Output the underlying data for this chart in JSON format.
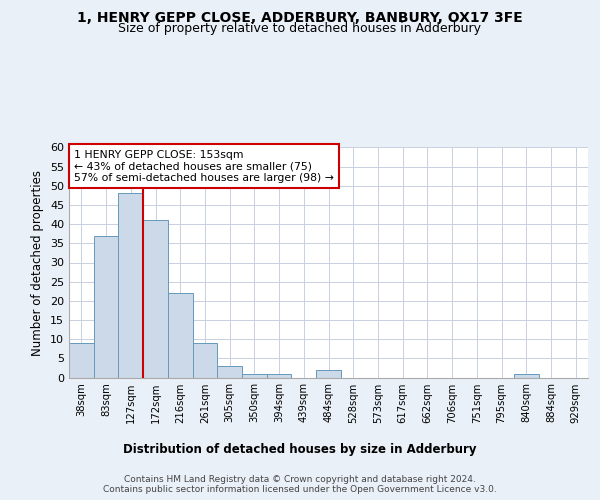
{
  "title": "1, HENRY GEPP CLOSE, ADDERBURY, BANBURY, OX17 3FE",
  "subtitle": "Size of property relative to detached houses in Adderbury",
  "xlabel": "Distribution of detached houses by size in Adderbury",
  "ylabel": "Number of detached properties",
  "bin_labels": [
    "38sqm",
    "83sqm",
    "127sqm",
    "172sqm",
    "216sqm",
    "261sqm",
    "305sqm",
    "350sqm",
    "394sqm",
    "439sqm",
    "484sqm",
    "528sqm",
    "573sqm",
    "617sqm",
    "662sqm",
    "706sqm",
    "751sqm",
    "795sqm",
    "840sqm",
    "884sqm",
    "929sqm"
  ],
  "bar_values": [
    9,
    37,
    48,
    41,
    22,
    9,
    3,
    1,
    1,
    0,
    2,
    0,
    0,
    0,
    0,
    0,
    0,
    0,
    1,
    0,
    0
  ],
  "ylim": [
    0,
    60
  ],
  "yticks": [
    0,
    5,
    10,
    15,
    20,
    25,
    30,
    35,
    40,
    45,
    50,
    55,
    60
  ],
  "bar_color": "#ccd9e8",
  "bar_edge_color": "#6699bb",
  "vline_x_index": 2,
  "vline_color": "#cc0000",
  "annotation_text": "1 HENRY GEPP CLOSE: 153sqm\n← 43% of detached houses are smaller (75)\n57% of semi-detached houses are larger (98) →",
  "annotation_box_color": "#ffffff",
  "annotation_box_edge_color": "#cc0000",
  "footer_text": "Contains HM Land Registry data © Crown copyright and database right 2024.\nContains public sector information licensed under the Open Government Licence v3.0.",
  "bg_color": "#eaf0f8",
  "plot_bg_color": "#ffffff",
  "grid_color": "#c8d0e0"
}
